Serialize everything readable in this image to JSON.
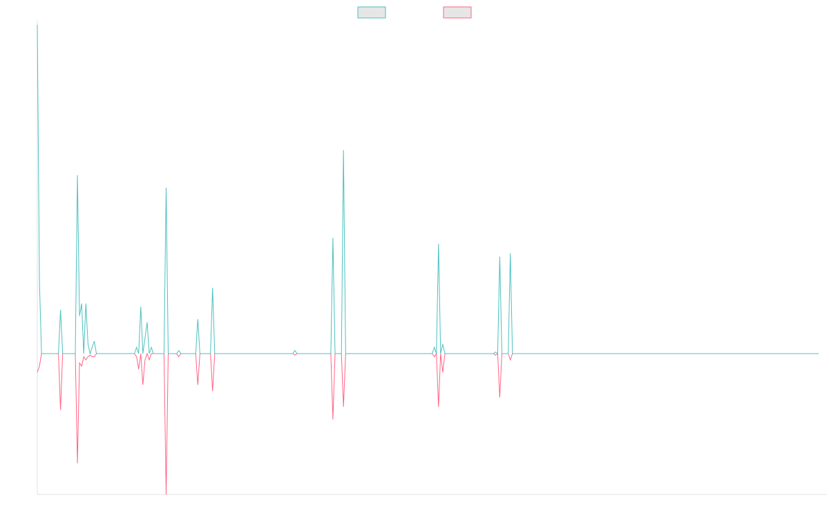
{
  "colors": {
    "background": "#ffffff",
    "axis": "#e0e0e0",
    "legend_fill": "#e6e6e6"
  },
  "chart_data": {
    "type": "line",
    "title": "",
    "xlabel": "",
    "ylabel": "",
    "legend": "top-center",
    "grid": false,
    "xlim": [
      0,
      370
    ],
    "ylim": [
      -45,
      105
    ],
    "series": [
      {
        "color": "#4bc0c0",
        "points": [
          [
            0,
            105
          ],
          [
            1,
            23
          ],
          [
            2,
            0
          ],
          [
            10,
            0
          ],
          [
            11,
            14
          ],
          [
            12,
            0
          ],
          [
            18,
            0
          ],
          [
            19,
            57
          ],
          [
            20,
            12
          ],
          [
            21,
            16
          ],
          [
            22,
            0
          ],
          [
            23,
            16
          ],
          [
            24,
            3
          ],
          [
            25,
            0
          ],
          [
            27,
            4
          ],
          [
            28,
            0
          ],
          [
            40,
            0
          ],
          [
            46,
            0
          ],
          [
            47,
            2
          ],
          [
            48,
            0
          ],
          [
            49,
            15
          ],
          [
            50,
            0
          ],
          [
            52,
            10
          ],
          [
            53,
            0
          ],
          [
            54,
            2
          ],
          [
            55,
            0
          ],
          [
            60,
            0
          ],
          [
            61,
            53
          ],
          [
            62,
            0
          ],
          [
            66,
            0
          ],
          [
            67,
            1
          ],
          [
            68,
            0
          ],
          [
            75,
            0
          ],
          [
            76,
            11
          ],
          [
            77,
            0
          ],
          [
            82,
            0
          ],
          [
            83,
            21
          ],
          [
            84,
            0
          ],
          [
            121,
            0
          ],
          [
            122,
            1
          ],
          [
            123,
            0
          ],
          [
            139,
            0
          ],
          [
            140,
            37
          ],
          [
            141,
            0
          ],
          [
            144,
            0
          ],
          [
            145,
            65
          ],
          [
            146,
            0
          ],
          [
            187,
            0
          ],
          [
            188,
            2
          ],
          [
            189,
            0
          ],
          [
            190,
            35
          ],
          [
            191,
            0
          ],
          [
            192,
            3
          ],
          [
            193,
            0
          ],
          [
            216,
            0
          ],
          [
            217,
            0.5
          ],
          [
            218,
            0
          ],
          [
            219,
            31
          ],
          [
            220,
            0
          ],
          [
            223,
            0
          ],
          [
            224,
            32
          ],
          [
            225,
            0
          ],
          [
            370,
            0
          ]
        ]
      },
      {
        "color": "#ff6384",
        "points": [
          [
            0,
            -6
          ],
          [
            1,
            -4
          ],
          [
            2,
            0
          ],
          [
            10,
            0
          ],
          [
            11,
            -18
          ],
          [
            12,
            0
          ],
          [
            18,
            0
          ],
          [
            19,
            -35
          ],
          [
            20,
            -3
          ],
          [
            21,
            -4
          ],
          [
            22,
            -1
          ],
          [
            23,
            -2
          ],
          [
            24,
            -1
          ],
          [
            25,
            -0.5
          ],
          [
            26,
            -1
          ],
          [
            27,
            -1
          ],
          [
            28,
            0
          ],
          [
            40,
            0
          ],
          [
            46,
            0
          ],
          [
            47,
            -1
          ],
          [
            48,
            -5
          ],
          [
            49,
            0
          ],
          [
            50,
            -10
          ],
          [
            51,
            -2
          ],
          [
            52,
            0
          ],
          [
            53,
            -2
          ],
          [
            54,
            0
          ],
          [
            60,
            0
          ],
          [
            61,
            -45
          ],
          [
            62,
            0
          ],
          [
            66,
            0
          ],
          [
            67,
            -1
          ],
          [
            68,
            0
          ],
          [
            75,
            0
          ],
          [
            76,
            -10
          ],
          [
            77,
            0
          ],
          [
            82,
            0
          ],
          [
            83,
            -12
          ],
          [
            84,
            0
          ],
          [
            121,
            0
          ],
          [
            122,
            -0.5
          ],
          [
            123,
            0
          ],
          [
            139,
            0
          ],
          [
            140,
            -21
          ],
          [
            141,
            0
          ],
          [
            144,
            0
          ],
          [
            145,
            -17
          ],
          [
            146,
            0
          ],
          [
            187,
            0
          ],
          [
            188,
            -1
          ],
          [
            189,
            0
          ],
          [
            190,
            -17
          ],
          [
            191,
            0
          ],
          [
            192,
            -6
          ],
          [
            193,
            0
          ],
          [
            216,
            0
          ],
          [
            217,
            -0.5
          ],
          [
            218,
            0
          ],
          [
            219,
            -14
          ],
          [
            220,
            0
          ],
          [
            223,
            0
          ],
          [
            224,
            -2
          ],
          [
            225,
            0
          ],
          [
            370,
            0
          ]
        ]
      }
    ]
  }
}
